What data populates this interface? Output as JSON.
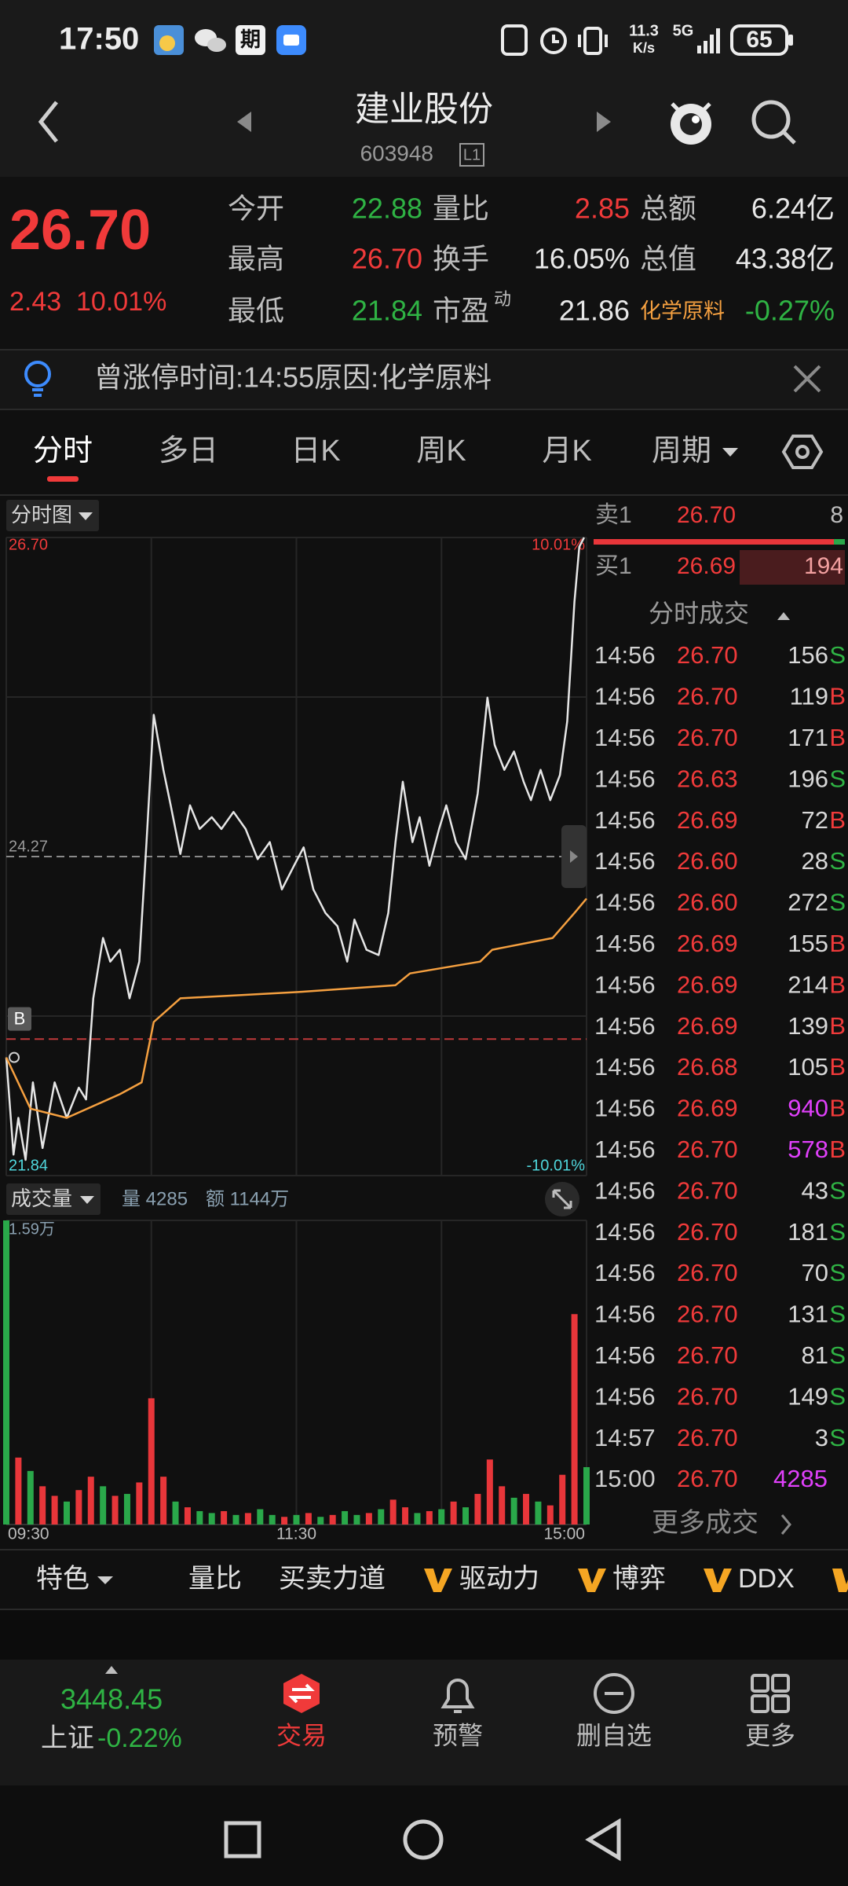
{
  "status_bar": {
    "time": "17:50",
    "calendar_icon": "期",
    "net_speed": "11.3",
    "net_unit": "K/s",
    "network": "5G",
    "battery": "65"
  },
  "header": {
    "name": "建业股份",
    "code": "603948",
    "level": "L1"
  },
  "quote": {
    "price": "26.70",
    "change": "2.43",
    "change_pct": "10.01%",
    "fields": [
      {
        "label": "今开",
        "value": "22.88",
        "color": "#2fb344"
      },
      {
        "label": "量比",
        "value": "2.85",
        "color": "#f03a3a"
      },
      {
        "label": "总额",
        "value": "6.24亿",
        "color": "#e8e8e8"
      },
      {
        "label": "最高",
        "value": "26.70",
        "color": "#f03a3a"
      },
      {
        "label": "换手",
        "value": "16.05%",
        "color": "#e8e8e8"
      },
      {
        "label": "总值",
        "value": "43.38亿",
        "color": "#e8e8e8"
      },
      {
        "label": "最低",
        "value": "21.84",
        "color": "#2fb344"
      },
      {
        "label": "市盈",
        "sup": "动",
        "value": "21.86",
        "color": "#e8e8e8"
      },
      {
        "label": "化学原料",
        "label_color": "#f5a040",
        "value": "-0.27%",
        "color": "#2fb344"
      }
    ]
  },
  "notice": "曾涨停时间:14:55原因:化学原料",
  "tabs": [
    "分时",
    "多日",
    "日K",
    "周K",
    "月K",
    "周期"
  ],
  "active_tab": 0,
  "intraday_chart": {
    "type": "line",
    "title": "分时图",
    "marker": "B",
    "xlim": [
      0,
      240
    ],
    "ylim": [
      21.84,
      26.7
    ],
    "yticks": [
      {
        "value": 26.7,
        "label": "26.70"
      },
      24.27,
      21.84
    ],
    "y2lim": [
      -10.01,
      10.01
    ],
    "y2ticks": [
      {
        "value": 10.01,
        "label": "10.01%"
      },
      {
        "value": -10.01,
        "label": "-10.01%"
      }
    ],
    "open_line": 22.88,
    "series": [
      {
        "color": "#e6e6e6",
        "x": [
          0,
          3,
          5,
          8,
          11,
          15,
          20,
          25,
          30,
          33,
          36,
          40,
          43,
          47,
          51,
          55,
          58,
          61,
          65,
          68,
          72,
          76,
          80,
          85,
          89,
          94,
          99,
          104,
          109,
          114,
          119,
          123,
          127,
          132,
          137,
          141,
          144,
          149,
          154,
          158,
          161,
          164,
          168,
          171,
          175,
          179,
          182,
          186,
          190,
          195,
          199,
          202,
          206,
          210,
          214,
          217,
          221,
          225,
          229,
          232,
          235,
          237,
          239
        ],
        "values": [
          22.74,
          22.0,
          22.28,
          21.96,
          22.55,
          22.05,
          22.55,
          22.28,
          22.51,
          22.42,
          23.19,
          23.65,
          23.47,
          23.56,
          23.19,
          23.47,
          24.38,
          25.35,
          24.93,
          24.66,
          24.29,
          24.66,
          24.48,
          24.57,
          24.48,
          24.61,
          24.48,
          24.25,
          24.38,
          24.02,
          24.2,
          24.34,
          24.02,
          23.84,
          23.74,
          23.47,
          23.79,
          23.56,
          23.52,
          23.84,
          24.38,
          24.84,
          24.38,
          24.57,
          24.2,
          24.48,
          24.66,
          24.38,
          24.25,
          24.75,
          25.48,
          25.12,
          24.93,
          25.07,
          24.84,
          24.7,
          24.93,
          24.7,
          24.89,
          25.3,
          26.21,
          26.63,
          26.7
        ]
      },
      {
        "color": "#f5a040",
        "x": [
          0,
          10,
          25,
          47,
          56,
          61,
          72,
          122,
          161,
          167,
          196,
          201,
          226,
          235,
          240
        ],
        "values": [
          22.74,
          22.35,
          22.28,
          22.46,
          22.55,
          23.01,
          23.19,
          23.24,
          23.29,
          23.38,
          23.47,
          23.56,
          23.65,
          23.84,
          23.95
        ]
      }
    ]
  },
  "volume_chart": {
    "type": "bar",
    "title": "成交量",
    "volume_label": "量 4285",
    "amount_label": "额 1144万",
    "xlim": [
      0,
      240
    ],
    "xticks": [
      {
        "value": 0,
        "label": "09:30"
      },
      {
        "value": 120,
        "label": "11:30"
      },
      {
        "value": 240,
        "label": "15:00"
      }
    ],
    "ylim": [
      0,
      15900
    ],
    "yticks": [
      {
        "value": 15900,
        "label": "1.59万"
      }
    ],
    "x": [
      0,
      5,
      10,
      15,
      20,
      25,
      30,
      35,
      40,
      45,
      50,
      55,
      60,
      65,
      70,
      75,
      80,
      85,
      90,
      95,
      100,
      105,
      110,
      115,
      120,
      125,
      130,
      135,
      140,
      145,
      150,
      155,
      160,
      165,
      170,
      175,
      180,
      185,
      190,
      195,
      200,
      205,
      210,
      215,
      220,
      225,
      230,
      235,
      240
    ],
    "values": [
      15900,
      3500,
      2800,
      2000,
      1500,
      1200,
      1800,
      2500,
      2000,
      1500,
      1600,
      2200,
      6600,
      2500,
      1200,
      900,
      700,
      600,
      700,
      500,
      600,
      800,
      500,
      400,
      500,
      600,
      400,
      500,
      700,
      500,
      600,
      800,
      1300,
      900,
      600,
      700,
      800,
      1200,
      900,
      1600,
      3400,
      2000,
      1400,
      1600,
      1200,
      1000,
      2600,
      11000,
      3000
    ],
    "colors": [
      "#2aa84a",
      "#e8363a",
      "#2aa84a",
      "#e8363a",
      "#e8363a",
      "#2aa84a",
      "#e8363a",
      "#e8363a",
      "#2aa84a",
      "#e8363a",
      "#2aa84a",
      "#e8363a",
      "#e8363a",
      "#e8363a",
      "#2aa84a",
      "#e8363a",
      "#2aa84a",
      "#2aa84a",
      "#e8363a",
      "#2aa84a",
      "#e8363a",
      "#2aa84a",
      "#2aa84a",
      "#e8363a",
      "#2aa84a",
      "#e8363a",
      "#2aa84a",
      "#e8363a",
      "#2aa84a",
      "#2aa84a",
      "#e8363a",
      "#2aa84a",
      "#e8363a",
      "#e8363a",
      "#2aa84a",
      "#e8363a",
      "#2aa84a",
      "#e8363a",
      "#2aa84a",
      "#e8363a",
      "#e8363a",
      "#e8363a",
      "#2aa84a",
      "#e8363a",
      "#2aa84a",
      "#e8363a",
      "#e8363a",
      "#e8363a",
      "#2aa84a"
    ]
  },
  "order_book": [
    {
      "side": "卖1",
      "price": "26.70",
      "volume": "8"
    },
    {
      "side": "买1",
      "price": "26.69",
      "volume": "194"
    }
  ],
  "trades_title": "分时成交",
  "trades": [
    {
      "time": "14:56",
      "price": "26.70",
      "volume": "156",
      "side": "S",
      "side_color": "#2fb344",
      "volume_color": "#d8d8d8"
    },
    {
      "time": "14:56",
      "price": "26.70",
      "volume": "119",
      "side": "B",
      "side_color": "#f03a3a",
      "volume_color": "#d8d8d8"
    },
    {
      "time": "14:56",
      "price": "26.70",
      "volume": "171",
      "side": "B",
      "side_color": "#f03a3a",
      "volume_color": "#d8d8d8"
    },
    {
      "time": "14:56",
      "price": "26.63",
      "volume": "196",
      "side": "S",
      "side_color": "#2fb344",
      "volume_color": "#d8d8d8"
    },
    {
      "time": "14:56",
      "price": "26.69",
      "volume": "72",
      "side": "B",
      "side_color": "#f03a3a",
      "volume_color": "#d8d8d8"
    },
    {
      "time": "14:56",
      "price": "26.60",
      "volume": "28",
      "side": "S",
      "side_color": "#2fb344",
      "volume_color": "#d8d8d8"
    },
    {
      "time": "14:56",
      "price": "26.60",
      "volume": "272",
      "side": "S",
      "side_color": "#2fb344",
      "volume_color": "#d8d8d8"
    },
    {
      "time": "14:56",
      "price": "26.69",
      "volume": "155",
      "side": "B",
      "side_color": "#f03a3a",
      "volume_color": "#d8d8d8"
    },
    {
      "time": "14:56",
      "price": "26.69",
      "volume": "214",
      "side": "B",
      "side_color": "#f03a3a",
      "volume_color": "#d8d8d8"
    },
    {
      "time": "14:56",
      "price": "26.69",
      "volume": "139",
      "side": "B",
      "side_color": "#f03a3a",
      "volume_color": "#d8d8d8"
    },
    {
      "time": "14:56",
      "price": "26.68",
      "volume": "105",
      "side": "B",
      "side_color": "#f03a3a",
      "volume_color": "#d8d8d8"
    },
    {
      "time": "14:56",
      "price": "26.69",
      "volume": "940",
      "side": "B",
      "side_color": "#f03a3a",
      "volume_color": "#e040fb"
    },
    {
      "time": "14:56",
      "price": "26.70",
      "volume": "578",
      "side": "B",
      "side_color": "#f03a3a",
      "volume_color": "#e040fb"
    },
    {
      "time": "14:56",
      "price": "26.70",
      "volume": "43",
      "side": "S",
      "side_color": "#2fb344",
      "volume_color": "#d8d8d8"
    },
    {
      "time": "14:56",
      "price": "26.70",
      "volume": "181",
      "side": "S",
      "side_color": "#2fb344",
      "volume_color": "#d8d8d8"
    },
    {
      "time": "14:56",
      "price": "26.70",
      "volume": "70",
      "side": "S",
      "side_color": "#2fb344",
      "volume_color": "#d8d8d8"
    },
    {
      "time": "14:56",
      "price": "26.70",
      "volume": "131",
      "side": "S",
      "side_color": "#2fb344",
      "volume_color": "#d8d8d8"
    },
    {
      "time": "14:56",
      "price": "26.70",
      "volume": "81",
      "side": "S",
      "side_color": "#2fb344",
      "volume_color": "#d8d8d8"
    },
    {
      "time": "14:56",
      "price": "26.70",
      "volume": "149",
      "side": "S",
      "side_color": "#2fb344",
      "volume_color": "#d8d8d8"
    },
    {
      "time": "14:57",
      "price": "26.70",
      "volume": "3",
      "side": "S",
      "side_color": "#2fb344",
      "volume_color": "#d8d8d8"
    },
    {
      "time": "15:00",
      "price": "26.70",
      "volume": "4285",
      "volume_color": "#e040fb"
    }
  ],
  "more_trades": "更多成交",
  "toolbar": [
    "特色",
    "量比",
    "买卖力道",
    "驱动力",
    "博弈",
    "DDX"
  ],
  "index": {
    "value": "3448.45",
    "name": "上证",
    "change_pct": "-0.22%"
  },
  "nav": [
    "交易",
    "预警",
    "删自选",
    "更多"
  ]
}
